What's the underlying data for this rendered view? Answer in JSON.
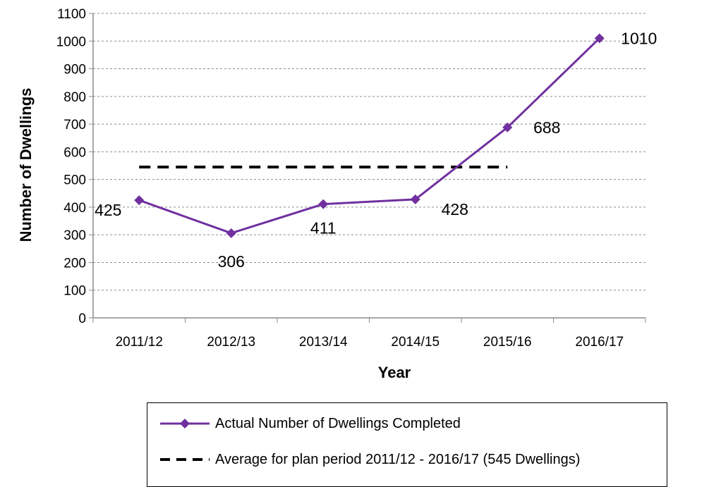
{
  "chart_data": {
    "type": "line",
    "categories": [
      "2011/12",
      "2012/13",
      "2013/14",
      "2014/15",
      "2015/16",
      "2016/17"
    ],
    "series": [
      {
        "name": "Actual Number of Dwellings Completed",
        "values": [
          425,
          306,
          411,
          428,
          688,
          1010
        ],
        "color": "#7030A0",
        "marker": "diamond",
        "data_labels": [
          "425",
          "306",
          "411",
          "428",
          "688",
          "1010"
        ]
      },
      {
        "name": "Average for plan period 2011/12 - 2016/17 (545 Dwellings)",
        "values": [
          545,
          545,
          545,
          545,
          545,
          545
        ],
        "color": "#000000",
        "style": "dashed"
      }
    ],
    "xlabel": "Year",
    "ylabel": "Number of Dwellings",
    "ylim": [
      0,
      1100
    ],
    "yticks": [
      "0",
      "100",
      "200",
      "300",
      "400",
      "500",
      "600",
      "700",
      "800",
      "900",
      "1000",
      "1100"
    ],
    "grid": "horizontal-dashed",
    "legend_position": "bottom"
  }
}
